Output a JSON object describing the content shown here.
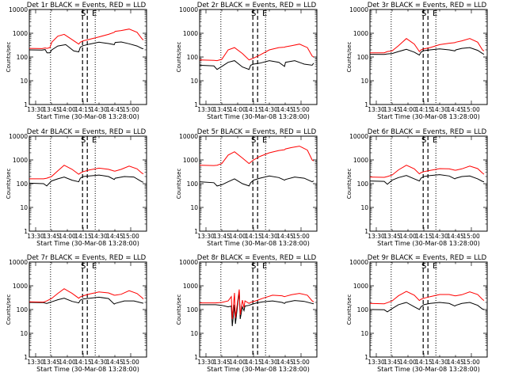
{
  "chart_data": {
    "type": "line",
    "layout": "3x3 grid of panels",
    "yscale": "log",
    "ylim": [
      1,
      10000
    ],
    "ytick_labels": [
      "1",
      "10",
      "100",
      "1000",
      "10000"
    ],
    "xlim_min": [
      0,
      37
    ],
    "xtick_labels": [
      "13:30",
      "13:45",
      "14:00",
      "14:15",
      "14:30",
      "14:45",
      "15:00"
    ],
    "xlabel": "Start Time (30-Mar-08 13:28:00)",
    "ylabel": "Counts/sec",
    "marker_labels": {
      "start": "S",
      "end": "E"
    },
    "colors": {
      "events": "#000000",
      "lld": "#ff0000"
    },
    "panels": [
      {
        "title": "Det 1r BLACK = Events, RED = LLD",
        "vline_dotted": [
          6.7,
          20.8
        ],
        "vline_dashed": [
          16.8,
          18.3
        ],
        "series": [
          {
            "color": "black",
            "x": [
              0,
              4,
              5,
              5.6,
              6.5,
              7.1,
              9,
              11.5,
              14,
              15.6,
              16.1,
              17,
              19,
              22,
              25,
              26.8,
              27.1,
              29,
              31.5,
              34,
              35.5,
              36
            ],
            "y": [
              200,
              195,
              205,
              150,
              150,
              200,
              290,
              330,
              180,
              165,
              260,
              300,
              350,
              420,
              370,
              330,
              410,
              430,
              360,
              290,
              230,
              220
            ]
          },
          {
            "color": "red",
            "x": [
              0,
              4,
              5,
              5.6,
              6.5,
              7.1,
              9,
              11,
              13,
              15.6,
              16.1,
              17,
              19,
              22,
              25,
              26.8,
              27.1,
              29,
              31.5,
              34,
              35.5,
              36
            ],
            "y": [
              230,
              225,
              240,
              230,
              250,
              420,
              750,
              900,
              600,
              350,
              420,
              480,
              560,
              700,
              900,
              1100,
              1200,
              1300,
              1500,
              1100,
              600,
              520
            ]
          }
        ]
      },
      {
        "title": "Det 2r BLACK = Events, RED = LLD",
        "vline_dotted": [
          6.7,
          20.8
        ],
        "vline_dashed": [
          16.8,
          18.3
        ],
        "series": [
          {
            "color": "black",
            "x": [
              0,
              4.5,
              5.5,
              7,
              9,
              11,
              13.5,
              15.6,
              16.1,
              17,
              19,
              22,
              25,
              26.8,
              27.1,
              30,
              33,
              35.5,
              36
            ],
            "y": [
              45,
              42,
              30,
              40,
              60,
              70,
              38,
              30,
              45,
              50,
              55,
              70,
              60,
              40,
              60,
              70,
              50,
              45,
              55
            ]
          },
          {
            "color": "red",
            "x": [
              0,
              4.5,
              5.5,
              7,
              9,
              11,
              13.5,
              15.6,
              16.1,
              17,
              19,
              22,
              25,
              26.8,
              27.1,
              29,
              31.5,
              34,
              35.5,
              36
            ],
            "y": [
              75,
              72,
              70,
              80,
              200,
              250,
              140,
              75,
              80,
              90,
              120,
              200,
              250,
              260,
              270,
              300,
              350,
              250,
              110,
              100
            ]
          }
        ]
      },
      {
        "title": "Det 3r BLACK = Events, RED = LLD",
        "vline_dotted": [
          6.7,
          20.8
        ],
        "vline_dashed": [
          16.8,
          18.3
        ],
        "series": [
          {
            "color": "black",
            "x": [
              0,
              4.5,
              5.5,
              7,
              9,
              11.5,
              14,
              15.6,
              16.1,
              17,
              19,
              22,
              25,
              26.8,
              27.1,
              29,
              31.5,
              34,
              35.5,
              36
            ],
            "y": [
              130,
              128,
              135,
              140,
              170,
              210,
              160,
              120,
              160,
              185,
              200,
              220,
              200,
              180,
              200,
              230,
              250,
              190,
              140,
              130
            ]
          },
          {
            "color": "red",
            "x": [
              0,
              4.5,
              5.5,
              7,
              9,
              11.5,
              14,
              15.6,
              16.1,
              17,
              19,
              22,
              25,
              26.8,
              27.1,
              29,
              31.5,
              34,
              35.5,
              36
            ],
            "y": [
              150,
              150,
              170,
              180,
              300,
              600,
              350,
              170,
              200,
              220,
              250,
              330,
              380,
              400,
              420,
              480,
              600,
              420,
              200,
              180
            ]
          }
        ]
      },
      {
        "title": "Det 4r BLACK = Events, RED = LLD",
        "vline_dotted": [
          6.7,
          20.8
        ],
        "vline_dashed": [
          16.8,
          18.3
        ],
        "series": [
          {
            "color": "black",
            "x": [
              0,
              4.5,
              5.5,
              7,
              9,
              11,
              13.5,
              15.6,
              16.1,
              17,
              19,
              22,
              25,
              26.8,
              27.1,
              30,
              33,
              35.5,
              36
            ],
            "y": [
              105,
              100,
              80,
              130,
              160,
              190,
              140,
              120,
              170,
              200,
              210,
              230,
              200,
              150,
              170,
              200,
              190,
              120,
              115
            ]
          },
          {
            "color": "red",
            "x": [
              0,
              4.5,
              5.5,
              7,
              9,
              11,
              13.5,
              15.6,
              16.1,
              17,
              19,
              22,
              25,
              26.8,
              27.1,
              29,
              31.5,
              34,
              35.5,
              36
            ],
            "y": [
              160,
              160,
              170,
              200,
              350,
              600,
              400,
              250,
              280,
              320,
              380,
              450,
              400,
              340,
              340,
              400,
              550,
              420,
              280,
              260
            ]
          }
        ]
      },
      {
        "title": "Det 5r BLACK = Events, RED = LLD",
        "vline_dotted": [
          6.7,
          20.8
        ],
        "vline_dashed": [
          16.8,
          18.3
        ],
        "series": [
          {
            "color": "black",
            "x": [
              0,
              4.5,
              5.5,
              7,
              9,
              11,
              13.5,
              15.6,
              16.1,
              17,
              19,
              22,
              25,
              26.8,
              27.1,
              30,
              33,
              35.5,
              36
            ],
            "y": [
              120,
              110,
              80,
              90,
              120,
              160,
              100,
              80,
              110,
              140,
              170,
              210,
              180,
              140,
              150,
              190,
              170,
              120,
              130
            ]
          },
          {
            "color": "red",
            "x": [
              0,
              4.5,
              5.5,
              7,
              9,
              11,
              13.5,
              15.6,
              16.1,
              17,
              19,
              22,
              25,
              26.8,
              27.1,
              29,
              31.5,
              34,
              35.5,
              36
            ],
            "y": [
              600,
              580,
              600,
              700,
              1600,
              2200,
              1200,
              700,
              800,
              1000,
              1400,
              2000,
              2500,
              2700,
              2900,
              3300,
              3800,
              2600,
              1000,
              900
            ]
          }
        ]
      },
      {
        "title": "Det 6r BLACK = Events, RED = LLD",
        "vline_dotted": [
          6.7,
          20.8
        ],
        "vline_dashed": [
          16.8,
          18.3
        ],
        "series": [
          {
            "color": "black",
            "x": [
              0,
              4.5,
              5.5,
              7,
              9,
              11.5,
              14,
              15.6,
              16.1,
              17,
              19,
              22,
              25,
              26.8,
              27.1,
              29,
              31.5,
              34,
              35.5,
              36
            ],
            "y": [
              130,
              125,
              95,
              140,
              180,
              220,
              160,
              130,
              170,
              200,
              220,
              240,
              210,
              160,
              170,
              200,
              210,
              160,
              125,
              120
            ]
          },
          {
            "color": "red",
            "x": [
              0,
              4.5,
              5.5,
              7,
              9,
              11.5,
              14,
              15.6,
              16.1,
              17,
              19,
              22,
              25,
              26.8,
              27.1,
              29,
              31.5,
              34,
              35.5,
              36
            ],
            "y": [
              190,
              185,
              200,
              230,
              380,
              600,
              420,
              260,
              290,
              320,
              360,
              430,
              420,
              370,
              370,
              420,
              550,
              430,
              280,
              250
            ]
          }
        ]
      },
      {
        "title": "Det 7r BLACK = Events, RED = LLD",
        "vline_dotted": [
          6.7,
          20.8
        ],
        "vline_dashed": [
          16.8,
          18.3
        ],
        "series": [
          {
            "color": "black",
            "x": [
              0,
              4.5,
              5.5,
              7,
              9,
              11,
              13.5,
              15.6,
              16.1,
              17,
              19,
              22,
              25,
              26.8,
              27.1,
              30,
              33,
              35.5,
              36
            ],
            "y": [
              200,
              195,
              180,
              210,
              260,
              300,
              220,
              190,
              250,
              280,
              300,
              330,
              290,
              170,
              180,
              230,
              230,
              190,
              185
            ]
          },
          {
            "color": "red",
            "x": [
              0,
              4.5,
              5.5,
              7,
              9,
              11,
              13.5,
              15.6,
              16.1,
              17,
              19,
              22,
              25,
              26.8,
              27.1,
              29,
              31.5,
              34,
              35.5,
              36
            ],
            "y": [
              210,
              205,
              230,
              290,
              480,
              750,
              480,
              300,
              340,
              380,
              450,
              550,
              500,
              400,
              400,
              440,
              620,
              470,
              320,
              280
            ]
          }
        ]
      },
      {
        "title": "Det 8r BLACK = Events, RED = LLD",
        "vline_dotted": [
          6.7,
          20.8
        ],
        "vline_dashed": [
          16.8,
          18.3
        ],
        "series": [
          {
            "color": "black",
            "x": [
              0,
              5,
              7,
              9,
              10,
              10.3,
              11,
              11.3,
              12.5,
              12.8,
              13.5,
              14,
              14.3,
              15.6,
              16.1,
              18,
              20,
              23,
              26,
              26.8,
              27.1,
              30,
              33,
              35.5,
              36
            ],
            "y": [
              160,
              160,
              150,
              130,
              140,
              20,
              160,
              25,
              600,
              40,
              130,
              90,
              140,
              150,
              160,
              190,
              210,
              230,
              200,
              180,
              200,
              240,
              220,
              180,
              175
            ]
          },
          {
            "color": "red",
            "x": [
              0,
              5,
              7,
              9,
              10,
              10.3,
              11,
              11.3,
              12.5,
              12.8,
              13.5,
              14,
              14.3,
              15.6,
              16.1,
              18,
              20,
              23,
              26,
              26.8,
              27.1,
              29,
              31.5,
              34,
              35.5,
              36
            ],
            "y": [
              190,
              190,
              200,
              230,
              350,
              40,
              500,
              45,
              700,
              60,
              250,
              120,
              230,
              180,
              200,
              240,
              300,
              400,
              380,
              350,
              360,
              420,
              480,
              400,
              230,
              210
            ]
          }
        ]
      },
      {
        "title": "Det 9r BLACK = Events, RED = LLD",
        "vline_dotted": [
          6.7,
          20.8
        ],
        "vline_dashed": [
          16.8,
          18.3
        ],
        "series": [
          {
            "color": "black",
            "x": [
              0,
              4.5,
              5.5,
              7,
              9,
              11.5,
              14,
              15.6,
              16.1,
              17,
              19,
              22,
              25,
              26.8,
              27.1,
              29,
              31.5,
              34,
              35.5,
              36
            ],
            "y": [
              100,
              98,
              80,
              110,
              160,
              200,
              130,
              100,
              130,
              160,
              180,
              200,
              180,
              140,
              150,
              180,
              200,
              150,
              105,
              100
            ]
          },
          {
            "color": "red",
            "x": [
              0,
              4.5,
              5.5,
              7,
              9,
              11.5,
              14,
              15.6,
              16.1,
              17,
              19,
              22,
              25,
              26.8,
              27.1,
              29,
              31.5,
              34,
              35.5,
              36
            ],
            "y": [
              180,
              175,
              195,
              230,
              380,
              580,
              400,
              240,
              270,
              300,
              350,
              430,
              430,
              380,
              380,
              420,
              560,
              430,
              270,
              240
            ]
          }
        ]
      }
    ]
  }
}
